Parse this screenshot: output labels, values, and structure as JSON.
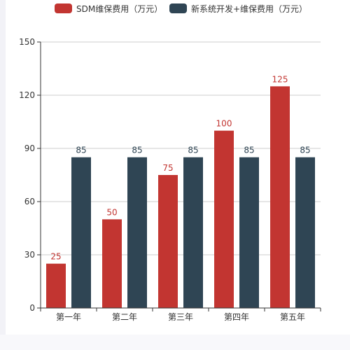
{
  "chart_data": {
    "type": "bar",
    "categories": [
      "第一年",
      "第二年",
      "第三年",
      "第四年",
      "第五年"
    ],
    "series": [
      {
        "name": "SDM维保费用（万元）",
        "values": [
          25,
          50,
          75,
          100,
          125
        ],
        "color": "#c23531"
      },
      {
        "name": "新系统开发+维保费用（万元）",
        "values": [
          85,
          85,
          85,
          85,
          85
        ],
        "color": "#2f4554"
      }
    ],
    "ylim": [
      0,
      150
    ],
    "yticks": [
      0,
      30,
      60,
      90,
      120,
      150
    ],
    "grid": true,
    "legend_position": "top",
    "data_labels": true
  }
}
